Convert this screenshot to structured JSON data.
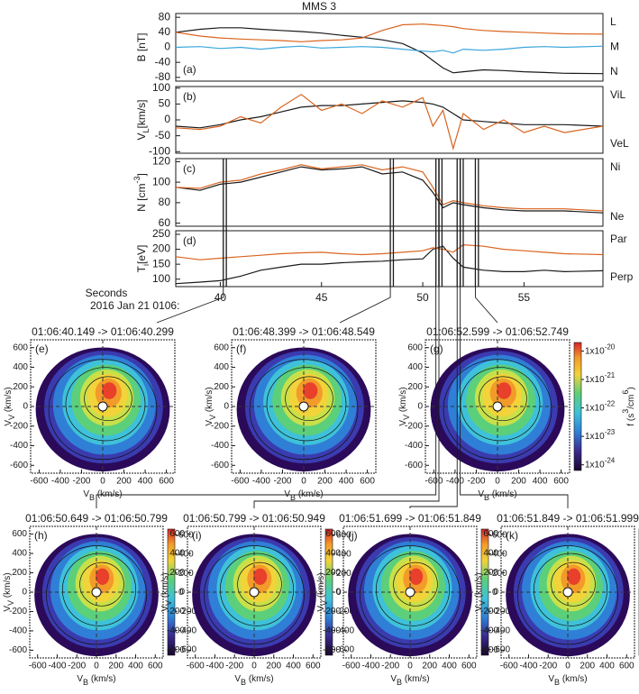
{
  "title": "MMS 3",
  "chart_data": [
    {
      "type": "line",
      "panel_label": "(a)",
      "ylabel": "B [nT]",
      "x": [
        37.8,
        39,
        40,
        41,
        42,
        43,
        44,
        45,
        46,
        47,
        48,
        49,
        50,
        50.5,
        51,
        51.5,
        52,
        53,
        54,
        55,
        56,
        57,
        58.9
      ],
      "xlim": [
        37.8,
        58.9
      ],
      "ylim": [
        -90,
        90
      ],
      "yticks": [
        -80,
        -40,
        0,
        40,
        80
      ],
      "series": [
        {
          "name": "L",
          "color": "#1a1a1a",
          "values": [
            40,
            48,
            52,
            52,
            48,
            45,
            42,
            38,
            32,
            27,
            20,
            10,
            -15,
            -35,
            -55,
            -68,
            -65,
            -60,
            -62,
            -65,
            -67,
            -69,
            -70
          ]
        },
        {
          "name": "M",
          "color": "#d9641f",
          "values": [
            40,
            30,
            25,
            22,
            20,
            18,
            15,
            18,
            20,
            25,
            45,
            60,
            62,
            60,
            58,
            55,
            50,
            45,
            42,
            40,
            38,
            36,
            35
          ]
        },
        {
          "name": "N",
          "color": "#3aa6dc",
          "values": [
            0,
            2,
            -3,
            0,
            -5,
            0,
            3,
            -2,
            0,
            2,
            0,
            -5,
            -10,
            -12,
            -8,
            -15,
            -5,
            -8,
            -5,
            0,
            2,
            0,
            3
          ]
        }
      ]
    },
    {
      "type": "line",
      "panel_label": "(b)",
      "ylabel": "V",
      "ylabel_sub": "L",
      "ylabel_end": "[km/s]",
      "x": [
        37.8,
        39,
        40,
        41,
        42,
        43,
        44,
        45,
        46,
        47,
        48,
        49,
        50,
        50.5,
        51,
        51.5,
        52,
        53,
        54,
        55,
        56,
        57,
        58.9
      ],
      "xlim": [
        37.8,
        58.9
      ],
      "ylim": [
        -105,
        105
      ],
      "yticks": [
        -100,
        -50,
        0,
        50,
        100
      ],
      "series": [
        {
          "name": "ViL",
          "color": "#1a1a1a",
          "values": [
            -20,
            -25,
            -15,
            0,
            10,
            25,
            40,
            45,
            45,
            50,
            55,
            60,
            55,
            50,
            40,
            20,
            0,
            -5,
            -10,
            -15,
            -15,
            -15,
            -20
          ]
        },
        {
          "name": "VeL",
          "color": "#d9641f",
          "values": [
            -25,
            -30,
            -20,
            10,
            -10,
            40,
            80,
            30,
            50,
            20,
            60,
            40,
            70,
            -20,
            30,
            -90,
            20,
            -30,
            0,
            -40,
            -20,
            -40,
            -20
          ]
        }
      ]
    },
    {
      "type": "line",
      "panel_label": "(c)",
      "ylabel": "N [cm",
      "ylabel_sup": "-3",
      "ylabel_end": "]",
      "x": [
        37.8,
        39,
        40,
        41,
        42,
        43,
        44,
        45,
        46,
        47,
        48,
        49,
        50,
        50.5,
        51,
        51.5,
        52,
        53,
        54,
        55,
        56,
        57,
        58.9
      ],
      "xlim": [
        37.8,
        58.9
      ],
      "ylim": [
        57,
        123
      ],
      "yticks": [
        60,
        80,
        100,
        120
      ],
      "series": [
        {
          "name": "Ni",
          "color": "#1a1a1a",
          "values": [
            95,
            92,
            98,
            100,
            105,
            110,
            115,
            112,
            113,
            115,
            108,
            110,
            102,
            90,
            75,
            80,
            78,
            75,
            73,
            72,
            72,
            72,
            70
          ]
        },
        {
          "name": "Ne",
          "color": "#d9641f",
          "values": [
            95,
            94,
            100,
            102,
            108,
            112,
            117,
            113,
            115,
            117,
            112,
            115,
            110,
            95,
            78,
            82,
            80,
            77,
            75,
            74,
            74,
            74,
            72
          ]
        }
      ]
    },
    {
      "type": "line",
      "panel_label": "(d)",
      "ylabel": "T",
      "ylabel_sub": "i",
      "ylabel_end": "[eV]",
      "x": [
        37.8,
        39,
        40,
        41,
        42,
        43,
        44,
        45,
        46,
        47,
        48,
        49,
        50,
        50.5,
        51,
        51.5,
        52,
        53,
        54,
        55,
        56,
        57,
        58.9
      ],
      "xlim": [
        37.8,
        58.9
      ],
      "ylim": [
        75,
        262
      ],
      "yticks": [
        100,
        150,
        200,
        250
      ],
      "xticks": [
        40,
        45,
        50,
        55
      ],
      "xlabel": "Seconds",
      "xlabel2": "2016 Jan 21 0106:",
      "series": [
        {
          "name": "Par",
          "color": "#1a1a1a",
          "values": [
            85,
            90,
            95,
            110,
            130,
            140,
            150,
            150,
            155,
            158,
            160,
            165,
            168,
            200,
            210,
            170,
            140,
            130,
            125,
            125,
            130,
            125,
            128
          ]
        },
        {
          "name": "Perp",
          "color": "#d9641f",
          "values": [
            175,
            165,
            170,
            175,
            180,
            185,
            188,
            190,
            185,
            182,
            185,
            190,
            195,
            205,
            200,
            190,
            215,
            210,
            200,
            195,
            190,
            185,
            182
          ]
        }
      ]
    }
  ],
  "distributions": [
    {
      "panel_label": "(e)",
      "title": "01:06:40.149 -> 01:06:40.299",
      "interval": [
        40.149,
        40.299
      ]
    },
    {
      "panel_label": "(f)",
      "title": "01:06:48.399 -> 01:06:48.549",
      "interval": [
        48.399,
        48.549
      ]
    },
    {
      "panel_label": "(g)",
      "title": "01:06:52.599 -> 01:06:52.749",
      "interval": [
        52.599,
        52.749
      ],
      "colorbar_tick_base": "1x10",
      "colorbar_ticks": [
        -20,
        -21,
        -22,
        -23,
        -24
      ],
      "colorbar_lim": [
        -24.2,
        -19.7
      ],
      "colorbar_label": "f (s",
      "colorbar_label_sup1": "3",
      "colorbar_label_mid": "/cm",
      "colorbar_label_sup2": "6",
      "colorbar_label_end": ")"
    },
    {
      "panel_label": "(h)",
      "title": "01:06:50.649 -> 01:06:50.799",
      "interval": [
        50.649,
        50.799
      ],
      "colorbar_ticks": [
        600,
        400,
        200,
        0,
        -200,
        -400,
        -600
      ],
      "colorbar_lim": [
        -660,
        660
      ]
    },
    {
      "panel_label": "(i)",
      "title": "01:06:50.799 -> 01:06:50.949",
      "interval": [
        50.799,
        50.949
      ],
      "colorbar_ticks": [
        600,
        400,
        200,
        0,
        -200,
        -400,
        -600
      ],
      "colorbar_lim": [
        -660,
        660
      ]
    },
    {
      "panel_label": "(j)",
      "title": "01:06:51.699 -> 01:06:51.849",
      "interval": [
        51.699,
        51.849
      ],
      "colorbar_ticks": [
        600,
        400,
        200,
        0,
        -200,
        -400,
        -600
      ],
      "colorbar_lim": [
        -660,
        660
      ]
    },
    {
      "panel_label": "(k)",
      "title": "01:06:51.849 -> 01:06:51.999",
      "interval": [
        51.849,
        51.999
      ],
      "colorbar_ticks": [
        600,
        400,
        200,
        0,
        -200,
        -400,
        -600
      ],
      "colorbar_lim": [
        -660,
        660
      ]
    }
  ],
  "vdf_axes": {
    "xlim": [
      -680,
      680
    ],
    "ylim": [
      -680,
      680
    ],
    "xticks": [
      -600,
      -400,
      -200,
      0,
      200,
      400,
      600
    ],
    "yticks": [
      -600,
      -400,
      -200,
      0,
      200,
      400,
      600
    ],
    "xlabel": "V",
    "xlabel_sub": "B",
    "xlabel_end": " (km/s)",
    "ylabel": "V",
    "ylabel_sub": "V",
    "ylabel_end": " (km/s)"
  }
}
